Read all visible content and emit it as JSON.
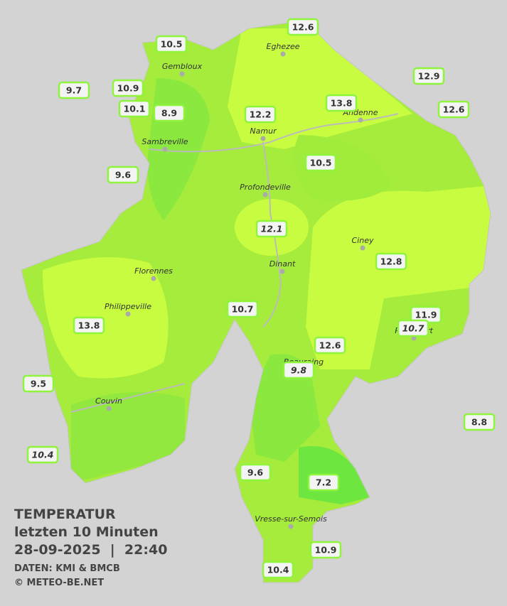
{
  "title": {
    "heading": "TEMPERATUR",
    "period": "letzten 10 Minuten",
    "datetime": "28-09-2025  |  22:40",
    "source": "DATEN: KMI & BMCB",
    "copyright": "© METEO-BE.NET"
  },
  "places": [
    "Eghezee",
    "Gembloux",
    "Namur",
    "Andenne",
    "Sambreville",
    "Profondeville",
    "Ciney",
    "Dinant",
    "Florennes",
    "Philippeville",
    "Couvin",
    "Vresse-sur-Semois",
    "Beauraing",
    "Rochefort"
  ],
  "stations": [
    12.6,
    10.5,
    12.9,
    9.7,
    10.9,
    13.8,
    12.6,
    10.1,
    8.9,
    12.2,
    10.5,
    9.6,
    12.1,
    12.8,
    10.7,
    11.9,
    10.7,
    13.8,
    12.6,
    9.8,
    9.5,
    8.8,
    10.4,
    9.6,
    7.2,
    10.9,
    10.4
  ]
}
